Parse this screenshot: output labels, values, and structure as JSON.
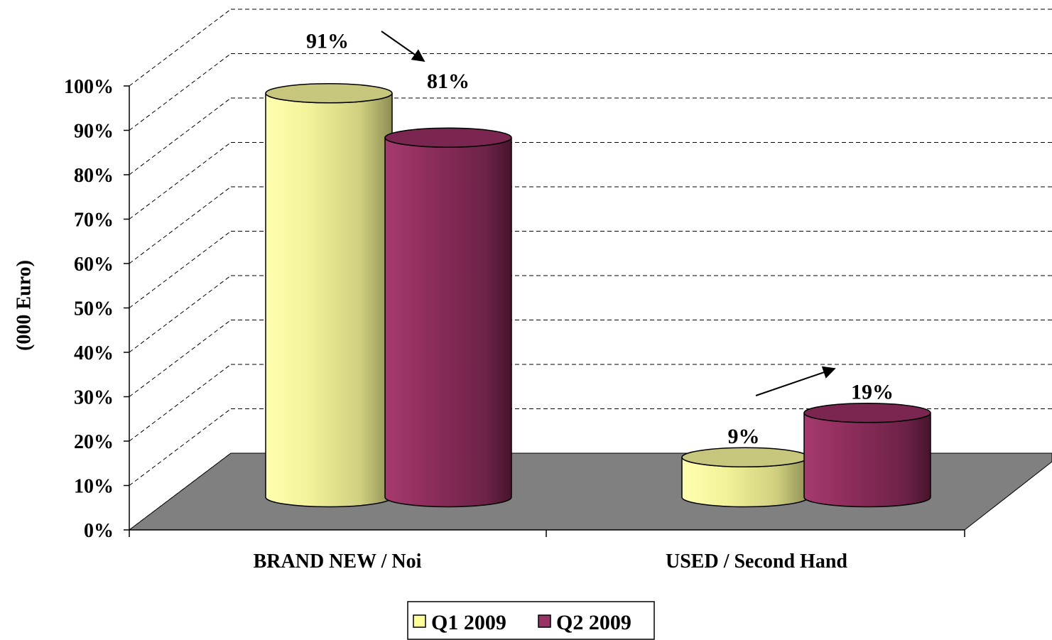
{
  "chart_data": {
    "type": "bar",
    "style": "3d-cylinder",
    "categories": [
      "BRAND NEW / Noi",
      "USED / Second Hand"
    ],
    "series": [
      {
        "name": "Q1 2009",
        "values": [
          91,
          9
        ],
        "labels": [
          "91%",
          "9%"
        ],
        "color": "#ffff99"
      },
      {
        "name": "Q2 2009",
        "values": [
          81,
          19
        ],
        "labels": [
          "81%",
          "19%"
        ],
        "color": "#993366"
      }
    ],
    "ylabel": "(000 Euro)",
    "ylim": [
      0,
      100
    ],
    "yticks": [
      "0%",
      "10%",
      "20%",
      "30%",
      "40%",
      "50%",
      "60%",
      "70%",
      "80%",
      "90%",
      "100%"
    ],
    "grid": true,
    "legend": "bottom",
    "floor_color": "#808080",
    "annotations": [
      "arrow from Q1 to Q2 (BRAND NEW)",
      "arrow from Q1 to Q2 (USED)"
    ]
  }
}
